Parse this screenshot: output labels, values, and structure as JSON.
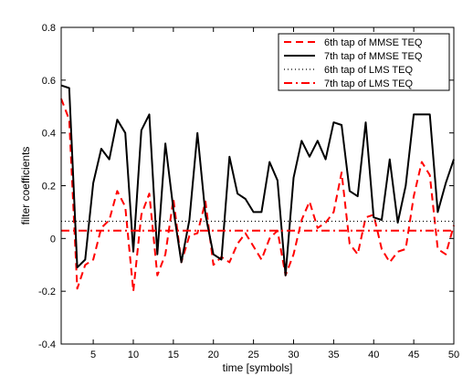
{
  "chart_data": {
    "type": "line",
    "title": "",
    "xlabel": "time [symbols]",
    "ylabel": "filter coefficients",
    "xlim": [
      1,
      50
    ],
    "ylim": [
      -0.4,
      0.8
    ],
    "xticks": [
      5,
      10,
      15,
      20,
      25,
      30,
      35,
      40,
      45,
      50
    ],
    "yticks": [
      -0.4,
      -0.2,
      0,
      0.2,
      0.4,
      0.6,
      0.8
    ],
    "xtick_labels": [
      "5",
      "10",
      "15",
      "20",
      "25",
      "30",
      "35",
      "40",
      "45",
      "50"
    ],
    "ytick_labels": [
      "-0.4",
      "-0.2",
      "0",
      "0.2",
      "0.4",
      "0.6",
      "0.8"
    ],
    "grid": false,
    "legend_position": "top-right",
    "x": [
      1,
      2,
      3,
      4,
      5,
      6,
      7,
      8,
      9,
      10,
      11,
      12,
      13,
      14,
      15,
      16,
      17,
      18,
      19,
      20,
      21,
      22,
      23,
      24,
      25,
      26,
      27,
      28,
      29,
      30,
      31,
      32,
      33,
      34,
      35,
      36,
      37,
      38,
      39,
      40,
      41,
      42,
      43,
      44,
      45,
      46,
      47,
      48,
      49,
      50
    ],
    "series": [
      {
        "name": "6th tap of MMSE TEQ",
        "color": "#ff0000",
        "style": "dashed",
        "values": [
          0.53,
          0.45,
          -0.19,
          -0.1,
          -0.08,
          0.04,
          0.07,
          0.18,
          0.12,
          -0.2,
          0.09,
          0.17,
          -0.14,
          -0.06,
          0.15,
          -0.09,
          0.01,
          0.02,
          0.14,
          -0.1,
          -0.07,
          -0.09,
          -0.02,
          0.02,
          -0.03,
          -0.08,
          0.0,
          0.03,
          -0.14,
          -0.06,
          0.07,
          0.14,
          0.04,
          0.06,
          0.1,
          0.25,
          -0.02,
          -0.06,
          0.08,
          0.09,
          -0.04,
          -0.09,
          -0.05,
          -0.04,
          0.16,
          0.29,
          0.24,
          -0.04,
          -0.06,
          0.05
        ]
      },
      {
        "name": "7th tap of MMSE TEQ",
        "color": "#000000",
        "style": "solid",
        "values": [
          0.58,
          0.57,
          -0.11,
          -0.08,
          0.21,
          0.34,
          0.3,
          0.45,
          0.4,
          -0.05,
          0.41,
          0.47,
          -0.06,
          0.36,
          0.11,
          -0.09,
          0.07,
          0.4,
          0.09,
          -0.06,
          -0.08,
          0.31,
          0.17,
          0.15,
          0.1,
          0.1,
          0.29,
          0.22,
          -0.14,
          0.23,
          0.37,
          0.31,
          0.37,
          0.3,
          0.44,
          0.43,
          0.18,
          0.16,
          0.44,
          0.08,
          0.07,
          0.3,
          0.06,
          0.2,
          0.47,
          0.47,
          0.47,
          0.1,
          0.21,
          0.3
        ]
      },
      {
        "name": "6th tap of LMS TEQ",
        "color": "#000000",
        "style": "dotted",
        "values": [
          0.065,
          0.065,
          0.065,
          0.065,
          0.065,
          0.065,
          0.065,
          0.065,
          0.065,
          0.065,
          0.065,
          0.065,
          0.065,
          0.065,
          0.065,
          0.065,
          0.065,
          0.065,
          0.065,
          0.065,
          0.065,
          0.065,
          0.065,
          0.065,
          0.065,
          0.065,
          0.065,
          0.065,
          0.065,
          0.065,
          0.065,
          0.065,
          0.065,
          0.065,
          0.065,
          0.065,
          0.065,
          0.065,
          0.065,
          0.065,
          0.065,
          0.065,
          0.065,
          0.065,
          0.065,
          0.065,
          0.065,
          0.065,
          0.065,
          0.065
        ]
      },
      {
        "name": "7th tap of LMS TEQ",
        "color": "#ff0000",
        "style": "dashdot",
        "values": [
          0.03,
          0.03,
          0.03,
          0.03,
          0.03,
          0.03,
          0.03,
          0.03,
          0.03,
          0.03,
          0.03,
          0.03,
          0.03,
          0.03,
          0.03,
          0.03,
          0.03,
          0.03,
          0.03,
          0.03,
          0.03,
          0.03,
          0.03,
          0.03,
          0.03,
          0.03,
          0.03,
          0.03,
          0.03,
          0.03,
          0.03,
          0.03,
          0.03,
          0.03,
          0.03,
          0.03,
          0.03,
          0.03,
          0.03,
          0.03,
          0.03,
          0.03,
          0.03,
          0.03,
          0.03,
          0.03,
          0.03,
          0.03,
          0.03,
          0.03
        ]
      }
    ]
  }
}
